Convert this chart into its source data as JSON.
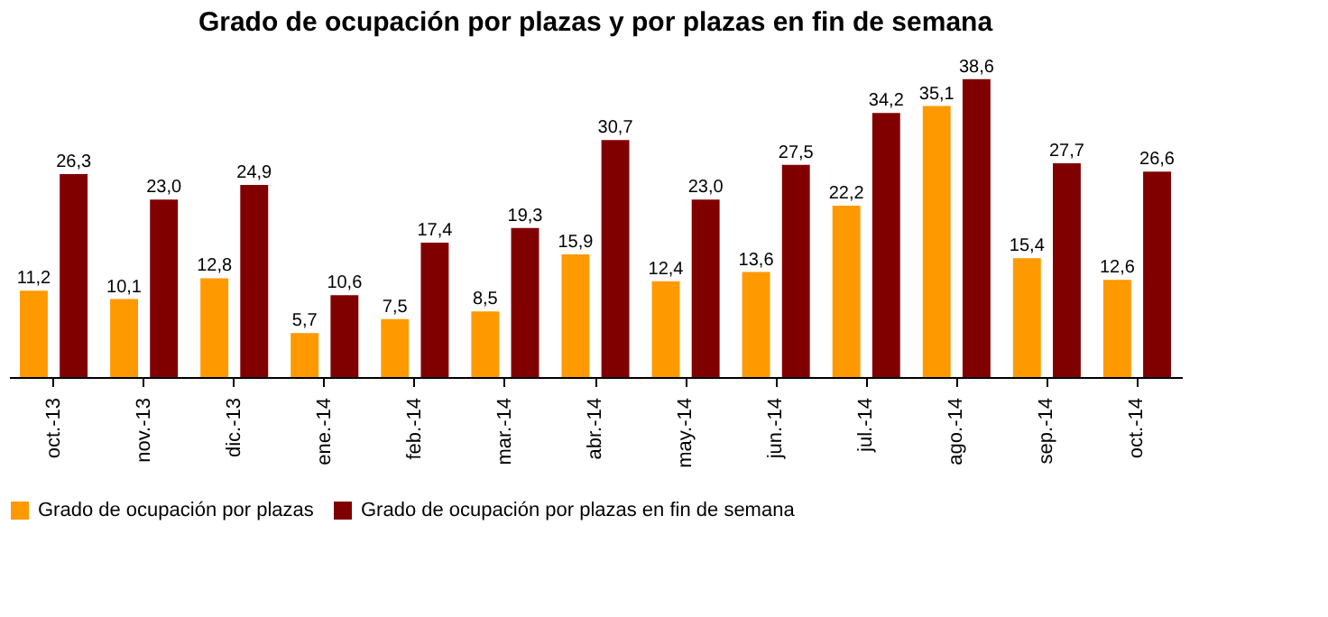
{
  "chart_data": {
    "type": "bar",
    "title": "Grado de ocupación por plazas y por plazas en fin de semana",
    "categories": [
      "oct.-13",
      "nov.-13",
      "dic.-13",
      "ene.-14",
      "feb.-14",
      "mar.-14",
      "abr.-14",
      "may.-14",
      "jun.-14",
      "jul.-14",
      "ago.-14",
      "sep.-14",
      "oct.-14"
    ],
    "series": [
      {
        "name": "Grado de ocupación por plazas",
        "color": "#ff9900",
        "values": [
          11.2,
          10.1,
          12.8,
          5.7,
          7.5,
          8.5,
          15.9,
          12.4,
          13.6,
          22.2,
          35.1,
          15.4,
          12.6
        ],
        "value_labels": [
          "11,2",
          "10,1",
          "12,8",
          "5,7",
          "7,5",
          "8,5",
          "15,9",
          "12,4",
          "13,6",
          "22,2",
          "35,1",
          "15,4",
          "12,6"
        ]
      },
      {
        "name": "Grado de ocupación por plazas en fin de semana",
        "color": "#800000",
        "values": [
          26.3,
          23.0,
          24.9,
          10.6,
          17.4,
          19.3,
          30.7,
          23.0,
          27.5,
          34.2,
          38.6,
          27.7,
          26.6
        ],
        "value_labels": [
          "26,3",
          "23,0",
          "24,9",
          "10,6",
          "17,4",
          "19,3",
          "30,7",
          "23,0",
          "27,5",
          "34,2",
          "38,6",
          "27,7",
          "26,6"
        ]
      }
    ],
    "legend": "bottom",
    "grid": false
  }
}
